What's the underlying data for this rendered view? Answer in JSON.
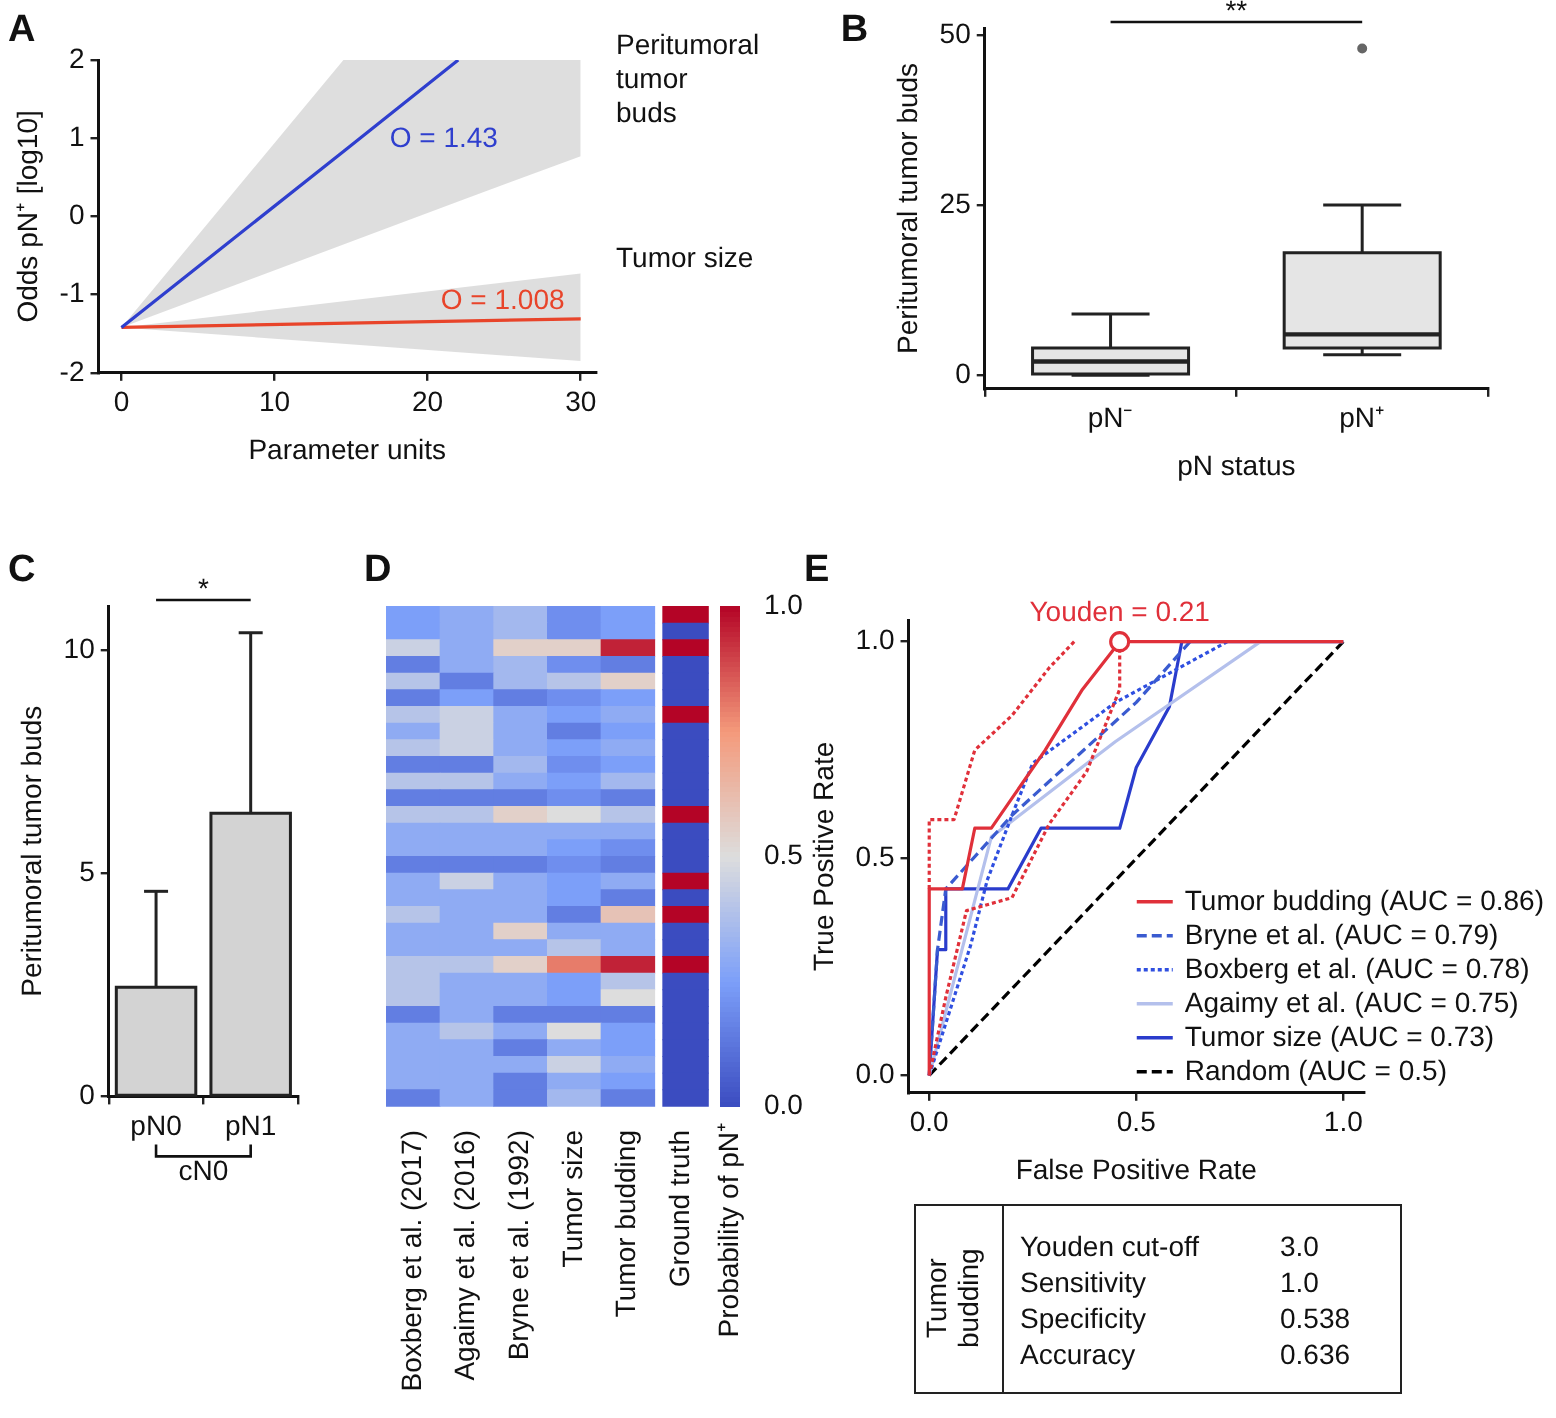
{
  "chart_data": [
    {
      "type": "line",
      "annotations": [
        "A",
        {
          "text": "O = 1.43",
          "x": 17,
          "y": 1.22
        },
        {
          "text": "O = 1.008",
          "x": 20.6,
          "y": -1.34
        }
      ],
      "xlabel": "Parameter units",
      "ylabel": "Odds pN⁺ [log10]",
      "xlim": [
        -1.5,
        31
      ],
      "ylim": [
        -2,
        2
      ],
      "xticks": [
        0,
        10,
        20,
        30
      ],
      "yticks": [
        -2,
        -1,
        0,
        1,
        2
      ],
      "marker": "none",
      "legend": false,
      "grid": false,
      "series": [
        {
          "name": "Peritumoral tumor buds",
          "color": "#2f3fce",
          "x": [
            0,
            14.5,
            22,
            30
          ],
          "values": [
            -1.42,
            0.83,
            2,
            null
          ],
          "lower": [
            -1.42,
            -0.36,
            0.19,
            0.77
          ],
          "upper": [
            -1.42,
            2,
            2,
            2
          ]
        },
        {
          "name": "Tumor size",
          "color": "#e8442a",
          "x": [
            0,
            30
          ],
          "values": [
            -1.42,
            -1.31
          ],
          "lower": [
            -1.42,
            -1.85
          ],
          "upper": [
            -1.42,
            -0.73
          ]
        }
      ]
    },
    {
      "type": "box",
      "annotations": [
        "B",
        "**"
      ],
      "categories": [
        "pN⁻",
        "pN⁺"
      ],
      "xlabel": "pN status",
      "ylabel": "Peritumoral tumor buds",
      "ylim": [
        -2,
        51
      ],
      "yticks": [
        0,
        25,
        50
      ],
      "grid": false,
      "color": "#e5e5e5",
      "boxes": [
        {
          "low": 0,
          "q1": 0,
          "median": 2,
          "q3": 4,
          "high": 9
        },
        {
          "low": 3,
          "q1": 4,
          "median": 6,
          "q3": 18,
          "high": 25,
          "outliers": [
            48
          ]
        }
      ]
    },
    {
      "type": "bar",
      "annotations": [
        "C",
        "*",
        "cN0"
      ],
      "categories": [
        "pN0",
        "pN1"
      ],
      "values": [
        2.45,
        6.35
      ],
      "errors": [
        [
          2.45,
          4.6
        ],
        [
          6.35,
          10.4
        ]
      ],
      "ylabel": "Peritumoral tumor buds",
      "ylim": [
        0,
        11
      ],
      "yticks": [
        0,
        5,
        10
      ],
      "color": "#d3d3d3",
      "grid": false
    },
    {
      "type": "heatmap",
      "annotations": [
        "D"
      ],
      "categories": [
        "Boxberg et al. (2017)",
        "Agaimy et al. (2016)",
        "Bryne et al. (1992)",
        "Tumor size",
        "Tumor budding",
        "Ground truth"
      ],
      "y_categories": [
        null,
        null,
        null,
        null,
        null,
        null,
        null,
        null,
        null,
        null,
        null,
        null,
        null,
        null,
        null,
        null,
        null,
        null,
        null,
        null,
        null,
        null,
        null,
        null,
        null,
        null,
        null,
        null,
        null,
        null
      ],
      "tick_labels": "x",
      "clim": [
        0,
        1
      ],
      "cticks": [
        {
          "value": 0,
          "label": "0.0"
        },
        0.5,
        {
          "value": 1,
          "label": "1.0"
        }
      ],
      "clabel": "Probability of pN⁺",
      "cells": [
        [
          0.25,
          0.3,
          0.35,
          0.2,
          0.25,
          1
        ],
        [
          0.25,
          0.3,
          0.35,
          0.2,
          0.25,
          0
        ],
        [
          0.45,
          0.3,
          0.55,
          0.55,
          0.95,
          1
        ],
        [
          0.15,
          0.3,
          0.35,
          0.2,
          0.15,
          0
        ],
        [
          0.4,
          0.15,
          0.35,
          0.4,
          0.55,
          0
        ],
        [
          0.15,
          0.25,
          0.15,
          0.2,
          0.25,
          0
        ],
        [
          0.4,
          0.45,
          0.3,
          0.25,
          0.3,
          1
        ],
        [
          0.3,
          0.45,
          0.3,
          0.15,
          0.25,
          0
        ],
        [
          0.4,
          0.45,
          0.3,
          0.25,
          0.3,
          0
        ],
        [
          0.15,
          0.15,
          0.35,
          0.2,
          0.25,
          0
        ],
        [
          0.4,
          0.4,
          0.3,
          0.25,
          0.35,
          0
        ],
        [
          0.15,
          0.15,
          0.15,
          0.2,
          0.15,
          0
        ],
        [
          0.4,
          0.4,
          0.55,
          0.5,
          0.4,
          1
        ],
        [
          0.3,
          0.3,
          0.3,
          0.3,
          0.3,
          0
        ],
        [
          0.3,
          0.3,
          0.3,
          0.25,
          0.2,
          0
        ],
        [
          0.15,
          0.15,
          0.15,
          0.2,
          0.15,
          0
        ],
        [
          0.3,
          0.45,
          0.3,
          0.25,
          0.3,
          1
        ],
        [
          0.3,
          0.3,
          0.3,
          0.25,
          0.15,
          0
        ],
        [
          0.4,
          0.3,
          0.3,
          0.15,
          0.6,
          1
        ],
        [
          0.3,
          0.3,
          0.55,
          0.3,
          0.3,
          0
        ],
        [
          0.3,
          0.3,
          0.3,
          0.4,
          0.3,
          0
        ],
        [
          0.4,
          0.4,
          0.55,
          0.8,
          0.95,
          1
        ],
        [
          0.4,
          0.3,
          0.3,
          0.25,
          0.4,
          0
        ],
        [
          0.4,
          0.3,
          0.3,
          0.25,
          0.5,
          0
        ],
        [
          0.15,
          0.3,
          0.15,
          0.15,
          0.15,
          0
        ],
        [
          0.3,
          0.4,
          0.3,
          0.5,
          0.25,
          0
        ],
        [
          0.3,
          0.3,
          0.15,
          0.3,
          0.25,
          0
        ],
        [
          0.3,
          0.3,
          0.3,
          0.45,
          0.3,
          0
        ],
        [
          0.3,
          0.3,
          0.15,
          0.3,
          0.25,
          0
        ],
        [
          0.15,
          0.3,
          0.15,
          0.35,
          0.15,
          0
        ]
      ]
    },
    {
      "type": "line",
      "annotations": [
        "E",
        {
          "text": "Youden = 0.21",
          "x": 0.46,
          "y": 1
        }
      ],
      "xlabel": "False Positive Rate",
      "ylabel": "True Positive Rate",
      "xlim": [
        -0.05,
        1.05
      ],
      "ylim": [
        -0.04,
        1.05
      ],
      "xticks": [
        {
          "value": 0,
          "label": "0.0"
        },
        0.5,
        {
          "value": 1,
          "label": "1.0"
        }
      ],
      "yticks": [
        {
          "value": 0,
          "label": "0.0"
        },
        0.5,
        {
          "value": 1,
          "label": "1.0"
        }
      ],
      "marker": "none",
      "legend": "bottom right",
      "grid": false,
      "series": [
        {
          "name": "Tumor budding (AUC = 0.86)",
          "color": "#e0303a",
          "x": [
            0,
            0,
            0.08,
            0.11,
            0.15,
            0.28,
            0.37,
            0.46,
            1
          ],
          "values": [
            0,
            0.43,
            0.43,
            0.57,
            0.57,
            0.75,
            0.89,
            1,
            1
          ]
        },
        {
          "color": "#e0303a",
          "line_style": "dotted",
          "x": [
            0,
            0,
            0.06,
            0.11,
            0.2,
            0.29,
            0.35
          ],
          "values": [
            0.43,
            0.59,
            0.59,
            0.75,
            0.83,
            0.94,
            1
          ]
        },
        {
          "color": "#e0303a",
          "line_style": "dotted",
          "x": [
            0,
            0.04,
            0.09,
            0.2,
            0.29,
            0.38,
            0.46,
            0.46
          ],
          "values": [
            0,
            0.18,
            0.38,
            0.41,
            0.58,
            0.7,
            0.89,
            1
          ]
        },
        {
          "name": "Bryne et al. (AUC = 0.79)",
          "color": "#3a5bd0",
          "line_style": "dashed",
          "x": [
            0,
            0.02,
            0.04,
            0.2,
            0.5,
            0.63
          ],
          "values": [
            0,
            0.29,
            0.43,
            0.6,
            0.86,
            1
          ]
        },
        {
          "name": "Boxberg et al. (AUC = 0.78)",
          "color": "#2f4fe0",
          "line_style": "dotted",
          "x": [
            0,
            0.1,
            0.14,
            0.2,
            0.25,
            0.45,
            0.72
          ],
          "values": [
            0,
            0.3,
            0.45,
            0.6,
            0.72,
            0.86,
            1
          ]
        },
        {
          "name": "Agaimy et al. (AUC = 0.75)",
          "color": "#b4c0ec",
          "x": [
            0,
            0.15,
            0.45,
            0.8,
            1
          ],
          "values": [
            0,
            0.55,
            0.77,
            1,
            1
          ]
        },
        {
          "name": "Tumor size (AUC = 0.73)",
          "color": "#2a3ccc",
          "x": [
            0,
            0.02,
            0.04,
            0.04,
            0.19,
            0.27,
            0.46,
            0.5,
            0.58,
            0.61,
            1
          ],
          "values": [
            0,
            0.29,
            0.29,
            0.43,
            0.43,
            0.57,
            0.57,
            0.71,
            0.85,
            1,
            1
          ]
        },
        {
          "name": "Random (AUC = 0.5)",
          "color": "#000000",
          "line_style": "dashed",
          "x": [
            0,
            1
          ],
          "values": [
            0,
            1
          ]
        },
        {
          "type": "scatter",
          "color": "#e0303a",
          "marker": "circle",
          "x": [
            0.46
          ],
          "values": [
            1
          ]
        }
      ]
    },
    {
      "type": "other",
      "title": "Tumor budding",
      "categories": [
        "Youden cut-off",
        "Sensitivity",
        "Specificity",
        "Accuracy"
      ],
      "values": [
        3.0,
        1.0,
        0.538,
        0.636
      ],
      "value_labels": [
        "3.0",
        "1.0",
        "0.538",
        "0.636"
      ]
    }
  ]
}
